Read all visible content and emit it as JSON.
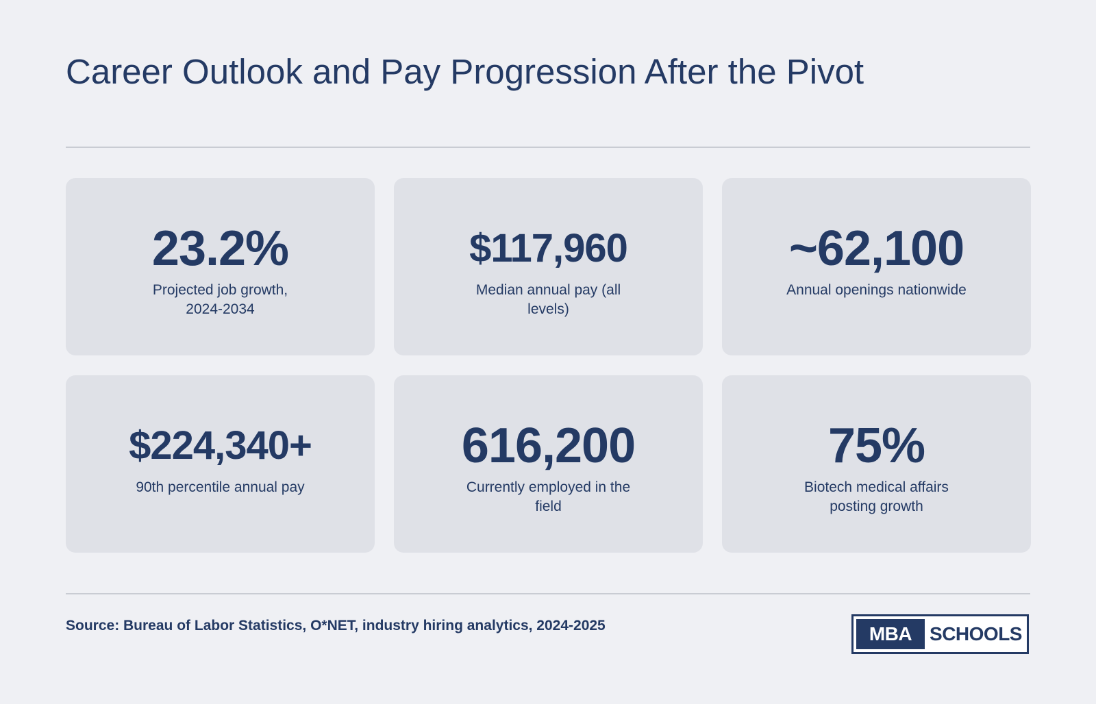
{
  "title": "Career Outlook and Pay Progression After the Pivot",
  "stats": [
    {
      "value": "23.2%",
      "label": "Projected job growth, 2024-2034"
    },
    {
      "value": "$117,960",
      "label": "Median annual pay (all levels)"
    },
    {
      "value": "~62,100",
      "label": "Annual openings nationwide"
    },
    {
      "value": "$224,340+",
      "label": "90th percentile annual pay"
    },
    {
      "value": "616,200",
      "label": "Currently employed in the field"
    },
    {
      "value": "75%",
      "label": "Biotech medical affairs posting growth"
    }
  ],
  "source": "Source: Bureau of Labor Statistics, O*NET, industry hiring analytics, 2024-2025",
  "logo": {
    "part1": "MBA",
    "part2": "SCHOOLS"
  },
  "colors": {
    "background": "#eff0f4",
    "card": "#dfe1e7",
    "text": "#243a64",
    "divider": "#c9ccd3"
  }
}
